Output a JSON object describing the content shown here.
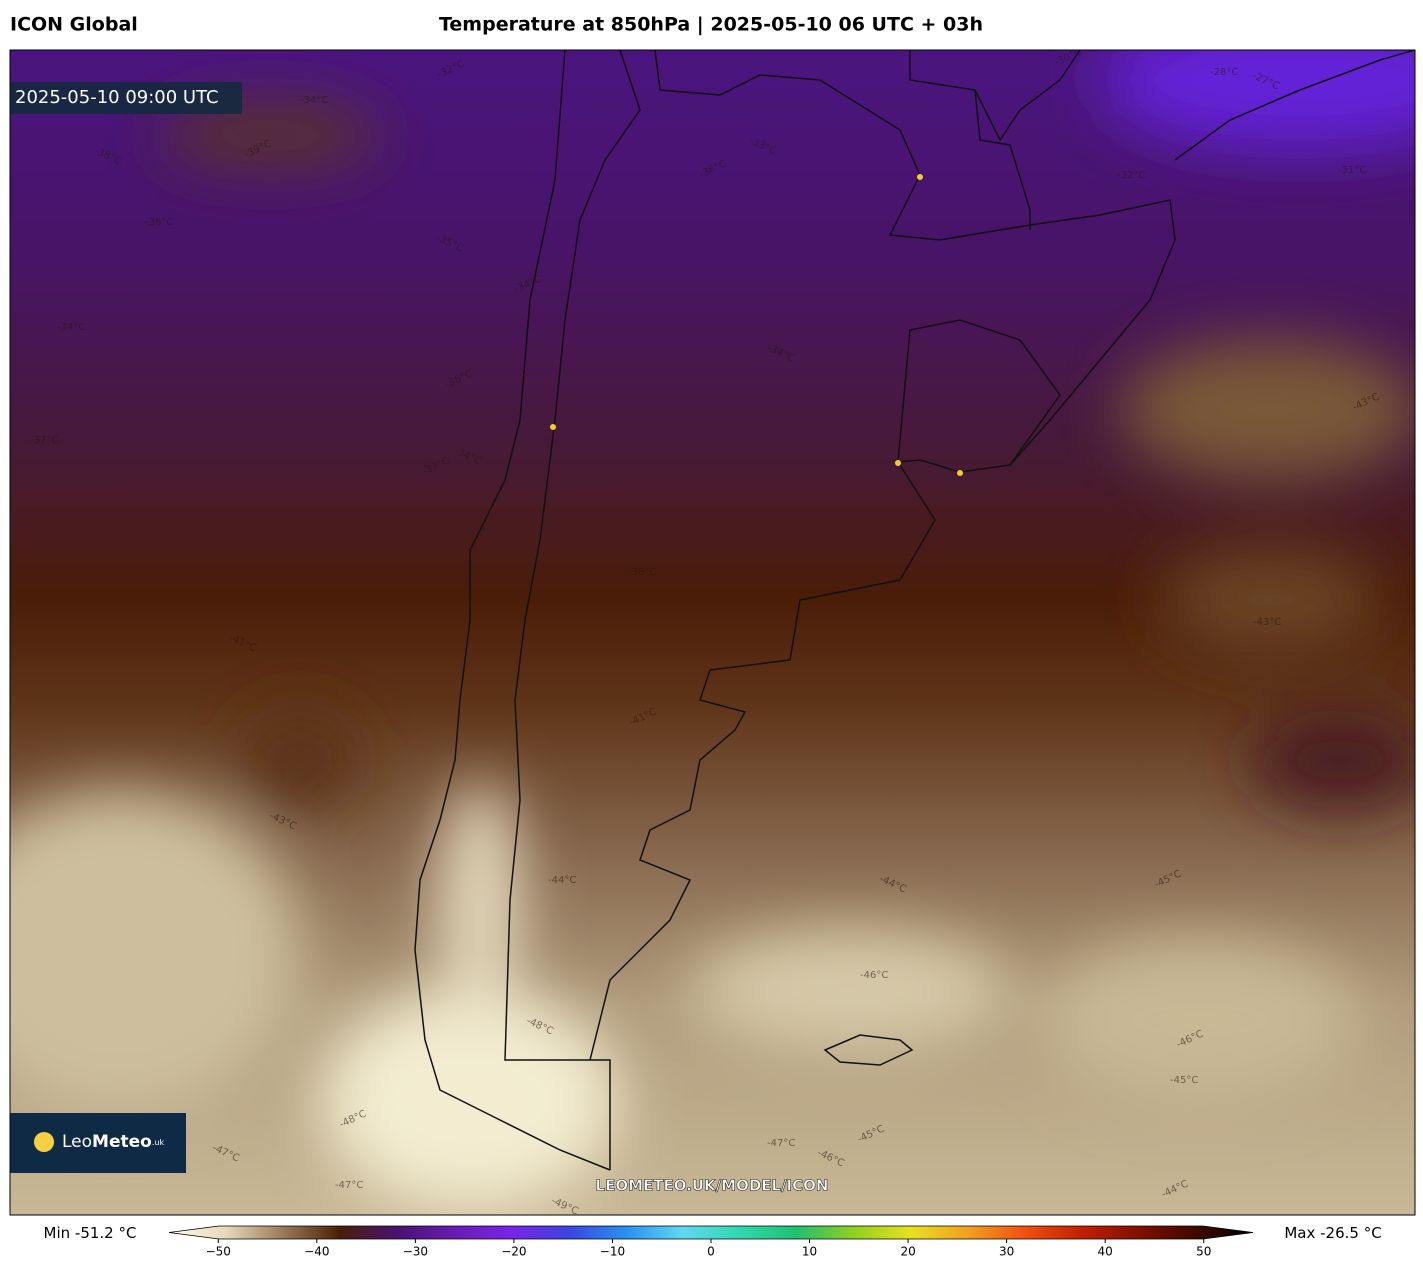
{
  "header": {
    "model": "ICON Global",
    "title": "Temperature at 850hPa | 2025-05-10 06 UTC + 03h"
  },
  "map": {
    "valid_time": "2025-05-10 09:00 UTC",
    "contour_labels": [
      "-32°C",
      "-34°C",
      "-38°C",
      "-39°C",
      "-36°C",
      "-35°C",
      "-34°C",
      "-34°C",
      "-34°C",
      "-36°C",
      "-37°C",
      "-34°C",
      "-37°C",
      "-38°C",
      "-41°C",
      "-43°C",
      "-43°C",
      "-43°C",
      "-41°C",
      "-44°C",
      "-44°C",
      "-45°C",
      "-46°C",
      "-48°C",
      "-46°C",
      "-45°C",
      "-47°C",
      "-48°C",
      "-47°C",
      "-49°C",
      "-44°C",
      "-47°C",
      "-46°C",
      "-45°C",
      "-28°C",
      "-27°C",
      "-30°C",
      "-31°C",
      "-33°C",
      "-36°C",
      "-32°C"
    ],
    "logo": {
      "prefix": "Leo",
      "name": "Meteo",
      "suffix": ".uk"
    },
    "watermark": "LEOMETEO.UK/MODEL/ICON"
  },
  "colorbar": {
    "min": {
      "label": "Min",
      "value": -51.2,
      "unit": "°C"
    },
    "max": {
      "label": "Max",
      "value": -26.5,
      "unit": "°C"
    },
    "lim": [
      -55,
      55
    ],
    "ticks": [
      {
        "value": -50,
        "label": "−50"
      },
      {
        "value": -40,
        "label": "−40"
      },
      {
        "value": -30,
        "label": "−30"
      },
      {
        "value": -20,
        "label": "−20"
      },
      {
        "value": -10,
        "label": "−10"
      },
      0,
      10,
      20,
      30,
      40,
      50
    ],
    "colors": [
      "#fffbe8",
      "#e6d8bc",
      "#9a7a5a",
      "#4a1e06",
      "#4a1270",
      "#6a1cb0",
      "#7a24e8",
      "#3c44e0",
      "#2a90f0",
      "#60d8f0",
      "#30d8b0",
      "#20c070",
      "#90d020",
      "#e8e020",
      "#f0a020",
      "#f05010",
      "#c02000",
      "#801000",
      "#400800",
      "#000000"
    ]
  }
}
